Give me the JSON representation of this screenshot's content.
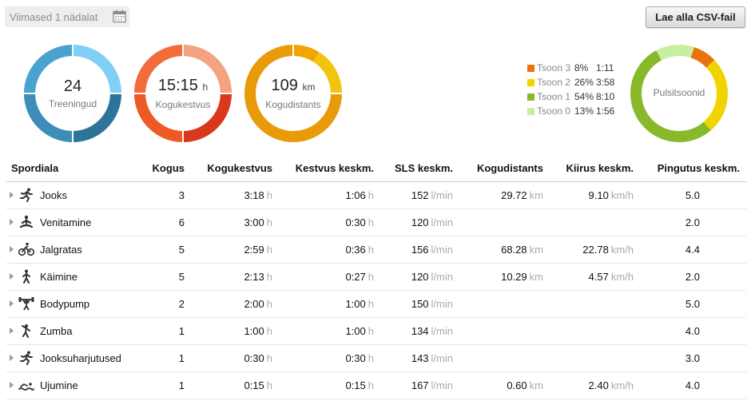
{
  "header": {
    "period_label": "Viimased 1 nädalat",
    "csv_button": "Lae alla CSV-fail"
  },
  "summary": {
    "workouts": {
      "value": "24",
      "unit": "",
      "label": "Treeningud"
    },
    "duration": {
      "value": "15:15",
      "unit": "h",
      "label": "Kogukestvus"
    },
    "distance": {
      "value": "109",
      "unit": "km",
      "label": "Kogudistants"
    }
  },
  "heart_zones": {
    "label": "Pulsitsoonid",
    "zones": [
      {
        "name": "Tsoon 3",
        "percent": "8%",
        "time": "1:11",
        "color": "#e8720c",
        "fraction": 0.08
      },
      {
        "name": "Tsoon 2",
        "percent": "26%",
        "time": "3:58",
        "color": "#f0d400",
        "fraction": 0.26
      },
      {
        "name": "Tsoon 1",
        "percent": "54%",
        "time": "8:10",
        "color": "#88b92a",
        "fraction": 0.54
      },
      {
        "name": "Tsoon 0",
        "percent": "13%",
        "time": "1:56",
        "color": "#c6ef9e",
        "fraction": 0.13
      }
    ]
  },
  "table": {
    "headers": {
      "sport": "Spordiala",
      "count": "Kogus",
      "total_duration": "Kogukestvus",
      "avg_duration": "Kestvus keskm.",
      "sls": "SLS keskm.",
      "distance": "Kogudistants",
      "speed": "Kiirus keskm.",
      "effort": "Pingutus keskm."
    },
    "units": {
      "h": "h",
      "lmin": "l/min",
      "km": "km",
      "kmh": "km/h"
    },
    "rows": [
      {
        "icon": "running-icon",
        "sport": "Jooks",
        "count": "3",
        "total_duration": "3:18",
        "avg_duration": "1:06",
        "sls": "152",
        "distance": "29.72",
        "speed": "9.10",
        "effort": "5.0"
      },
      {
        "icon": "meditation-icon",
        "sport": "Venitamine",
        "count": "6",
        "total_duration": "3:00",
        "avg_duration": "0:30",
        "sls": "120",
        "distance": "",
        "speed": "",
        "effort": "2.0"
      },
      {
        "icon": "cycling-icon",
        "sport": "Jalgratas",
        "count": "5",
        "total_duration": "2:59",
        "avg_duration": "0:36",
        "sls": "156",
        "distance": "68.28",
        "speed": "22.78",
        "effort": "4.4"
      },
      {
        "icon": "walking-icon",
        "sport": "Käimine",
        "count": "5",
        "total_duration": "2:13",
        "avg_duration": "0:27",
        "sls": "120",
        "distance": "10.29",
        "speed": "4.57",
        "effort": "2.0"
      },
      {
        "icon": "weightlifting-icon",
        "sport": "Bodypump",
        "count": "2",
        "total_duration": "2:00",
        "avg_duration": "1:00",
        "sls": "150",
        "distance": "",
        "speed": "",
        "effort": "5.0"
      },
      {
        "icon": "dance-icon",
        "sport": "Zumba",
        "count": "1",
        "total_duration": "1:00",
        "avg_duration": "1:00",
        "sls": "134",
        "distance": "",
        "speed": "",
        "effort": "4.0"
      },
      {
        "icon": "running-drill-icon",
        "sport": "Jooksuharjutused",
        "count": "1",
        "total_duration": "0:30",
        "avg_duration": "0:30",
        "sls": "143",
        "distance": "",
        "speed": "",
        "effort": "3.0"
      },
      {
        "icon": "swimming-icon",
        "sport": "Ujumine",
        "count": "1",
        "total_duration": "0:15",
        "avg_duration": "0:15",
        "sls": "167",
        "distance": "0.60",
        "speed": "2.40",
        "effort": "4.0"
      }
    ]
  }
}
